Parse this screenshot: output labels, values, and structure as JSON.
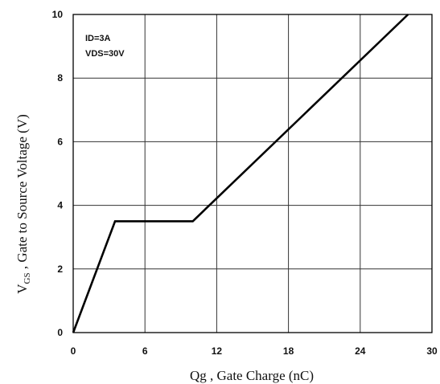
{
  "chart_data": {
    "type": "line",
    "title": "",
    "xlabel": "Qg , Gate Charge (nC)",
    "ylabel": {
      "main": "V",
      "sub": "GS",
      "rest": " , Gate to Source Voltage (V)"
    },
    "xlim": [
      0,
      30
    ],
    "ylim": [
      0,
      10
    ],
    "xticks": [
      "0",
      "6",
      "12",
      "18",
      "24",
      "30"
    ],
    "yticks": [
      "0",
      "2",
      "4",
      "6",
      "8",
      "10"
    ],
    "grid": true,
    "annotations": [
      "ID=3A",
      "VDS=30V"
    ],
    "colors": {
      "line": "#000000",
      "grid": "#333333",
      "frame": "#000000"
    },
    "series": [
      {
        "x": [
          0,
          3.5,
          10,
          28
        ],
        "y": [
          0,
          3.5,
          3.5,
          10
        ]
      }
    ]
  }
}
